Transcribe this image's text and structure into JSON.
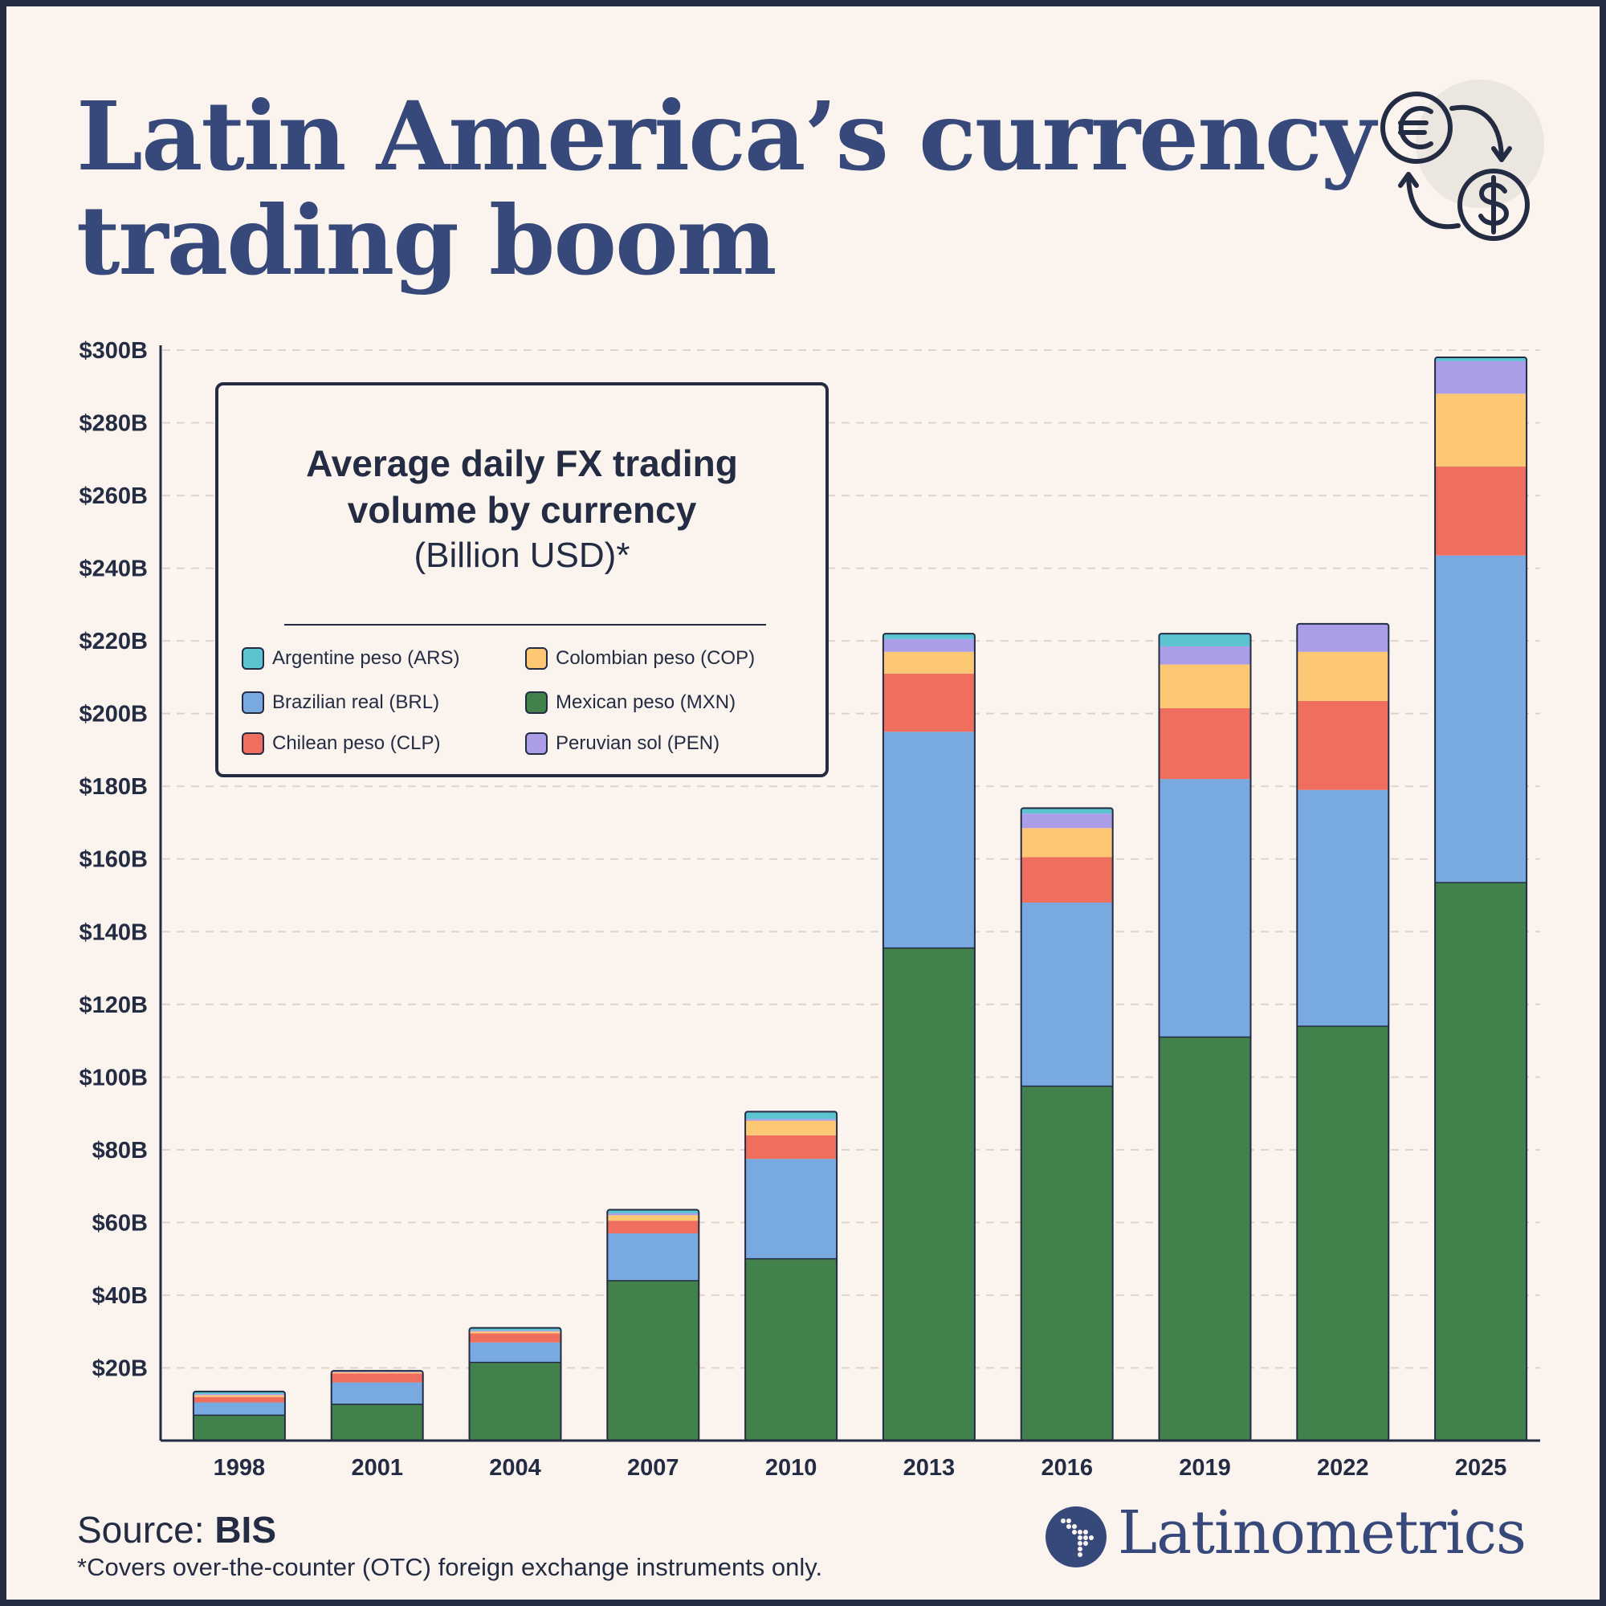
{
  "header": {
    "title_line1": "Latin America’s currency",
    "title_line2": "trading boom"
  },
  "legend": {
    "title_line1": "Average daily FX trading",
    "title_line2": "volume by currency",
    "unit": "(Billion USD)*",
    "items": [
      {
        "label": "Argentine peso (ARS)",
        "color": "#5cc4d1"
      },
      {
        "label": "Colombian peso (COP)",
        "color": "#fdc874"
      },
      {
        "label": "Brazilian real (BRL)",
        "color": "#78a9e0"
      },
      {
        "label": "Mexican peso (MXN)",
        "color": "#42804c"
      },
      {
        "label": "Chilean peso (CLP)",
        "color": "#ef6e5e"
      },
      {
        "label": "Peruvian sol (PEN)",
        "color": "#ac9de8"
      }
    ]
  },
  "footer": {
    "source_prefix": "Source: ",
    "source_name": "BIS",
    "footnote": "*Covers over-the-counter (OTC) foreign exchange instruments only.",
    "brand": "Latinometrics"
  },
  "colors": {
    "background": "#fbf4ee",
    "ink": "#232c43",
    "title": "#36497a",
    "grid": "#dcd3cc"
  },
  "icons": [
    "euro-icon",
    "dollar-icon",
    "exchange-arrows-icon",
    "latin-america-map-logo-icon"
  ],
  "chart_data": {
    "type": "bar",
    "stacked": true,
    "categories": [
      "1998",
      "2001",
      "2004",
      "2007",
      "2010",
      "2013",
      "2016",
      "2019",
      "2022",
      "2025"
    ],
    "ylim": [
      0,
      300
    ],
    "y_ticks": [
      20,
      40,
      60,
      80,
      100,
      120,
      140,
      160,
      180,
      200,
      220,
      240,
      260,
      280,
      300
    ],
    "y_tick_labels": [
      "$20B",
      "$40B",
      "$60B",
      "$80B",
      "$100B",
      "$120B",
      "$140B",
      "$160B",
      "$180B",
      "$200B",
      "$220B",
      "$240B",
      "$260B",
      "$280B",
      "$300B"
    ],
    "grid": true,
    "series": [
      {
        "name": "Mexican peso (MXN)",
        "color": "#42804c",
        "values": [
          7,
          10,
          21.5,
          44,
          50,
          135.5,
          97.5,
          111,
          114,
          153.5
        ]
      },
      {
        "name": "Brazilian real (BRL)",
        "color": "#78a9e0",
        "values": [
          3.5,
          6,
          5.5,
          13,
          27.5,
          59.5,
          50.5,
          71,
          65,
          90
        ]
      },
      {
        "name": "Chilean peso (CLP)",
        "color": "#ef6e5e",
        "values": [
          1.5,
          2.5,
          2.5,
          3.5,
          6.5,
          16,
          12.5,
          19.5,
          24.5,
          24.5
        ]
      },
      {
        "name": "Colombian peso (COP)",
        "color": "#fdc874",
        "values": [
          0.5,
          0.3,
          0.5,
          1.5,
          4,
          6,
          8,
          12,
          13.5,
          20
        ]
      },
      {
        "name": "Peruvian sol (PEN)",
        "color": "#ac9de8",
        "values": [
          0.3,
          0.2,
          0.3,
          0.5,
          0.5,
          3.5,
          4,
          5,
          7.5,
          9
        ]
      },
      {
        "name": "Argentine peso (ARS)",
        "color": "#5cc4d1",
        "values": [
          0.7,
          0.2,
          0.7,
          1,
          2,
          1.5,
          1.5,
          3.5,
          0.2,
          1
        ]
      }
    ]
  }
}
